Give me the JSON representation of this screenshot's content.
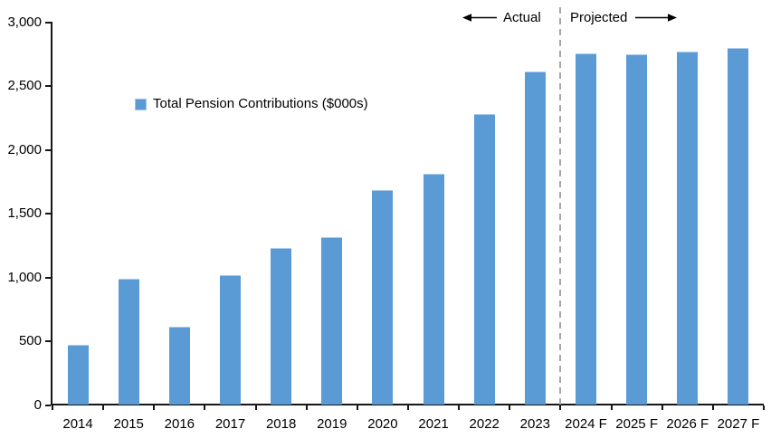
{
  "chart_data": {
    "type": "bar",
    "title": "",
    "xlabel": "",
    "ylabel": "",
    "categories": [
      "2014",
      "2015",
      "2016",
      "2017",
      "2018",
      "2019",
      "2020",
      "2021",
      "2022",
      "2023",
      "2024 F",
      "2025 F",
      "2026 F",
      "2027 F"
    ],
    "series": [
      {
        "name": "Total Pension Contributions ($000s)",
        "values": [
          470,
          990,
          610,
          1020,
          1230,
          1315,
          1685,
          1815,
          2280,
          2615,
          2755,
          2745,
          2770,
          2795
        ]
      }
    ],
    "ylim": [
      0,
      3000
    ],
    "ytick_values": [
      0,
      500,
      1000,
      1500,
      2000,
      2500,
      3000
    ],
    "ytick_labels": [
      "0",
      "500",
      "1,000",
      "1,500",
      "2,000",
      "2,500",
      "3,000"
    ],
    "grid": false,
    "legend": {
      "position": "inside-upper-left",
      "entries": [
        "Total Pension Contributions ($000s)"
      ]
    },
    "annotations": [
      {
        "text": "Actual",
        "arrow": "left"
      },
      {
        "text": "Projected",
        "arrow": "right"
      }
    ],
    "divider": {
      "after_category_index": 10,
      "style": "dashed",
      "color": "#A6A6A6"
    },
    "colors": {
      "bar": "#5B9BD5",
      "axis": "#161616",
      "text": "#000000"
    }
  }
}
